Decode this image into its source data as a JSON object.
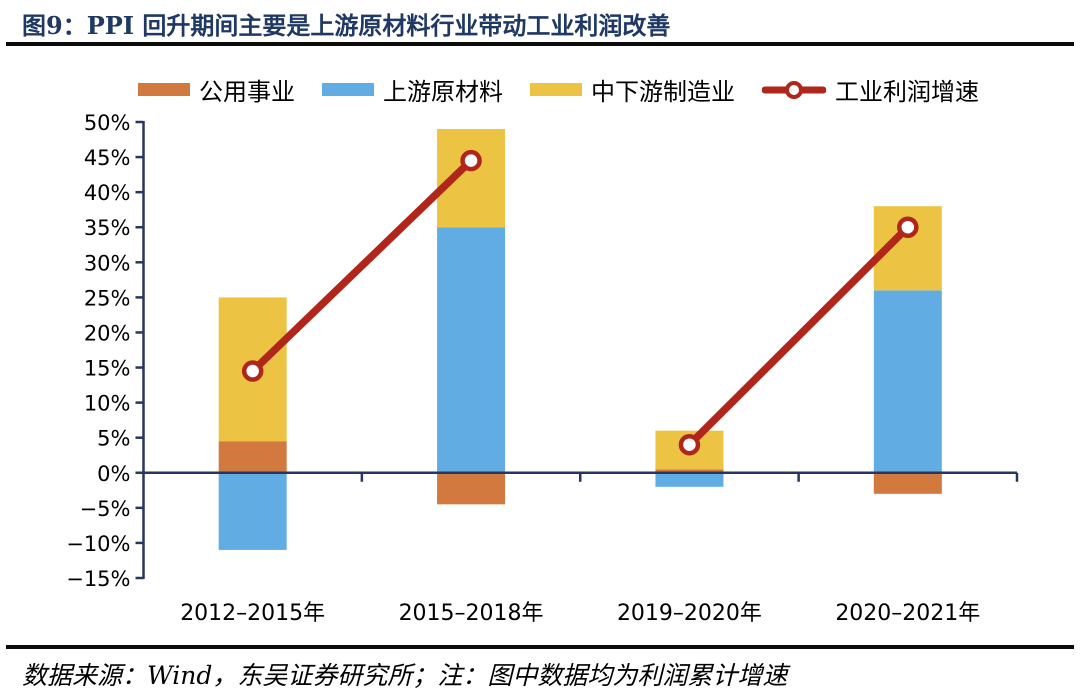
{
  "title": "图9：PPI 回升期间主要是上游原材料行业带动工业利润改善",
  "footer": {
    "note": "数据来源：Wind，东吴证券研究所；注：图中数据均为利润累计增速"
  },
  "colors": {
    "title_navy": "#1F3864",
    "axis_navy": "#26365E",
    "utilities_orange": "#D2793F",
    "upstream_blue": "#61ADE3",
    "midstream_yellow": "#EDC344",
    "line_red": "#B0261A",
    "rule_black": "#0b0b0b"
  },
  "chart_data": {
    "type": "bar",
    "subtype": "stacked-bars-with-line-overlay",
    "title": "PPI 回升期间主要是上游原材料行业带动工业利润改善",
    "xlabel": "",
    "ylabel": "",
    "grid": false,
    "legend_position": "top",
    "categories": [
      "2012–2015年",
      "2015–2018年",
      "2019–2020年",
      "2020–2021年"
    ],
    "series": [
      {
        "name": "公用事业",
        "color": "#D2793F",
        "values": [
          4.5,
          -4.5,
          0.5,
          -3
        ]
      },
      {
        "name": "上游原材料",
        "color": "#61ADE3",
        "values": [
          -11,
          35,
          -2,
          26
        ]
      },
      {
        "name": "中下游制造业",
        "color": "#EDC344",
        "values": [
          20.5,
          14,
          5.5,
          12
        ]
      }
    ],
    "line_series": {
      "name": "工业利润增速",
      "color": "#B0261A",
      "marker": "open-circle",
      "values": [
        14.5,
        44.5,
        4,
        35
      ],
      "break_after": [
        1
      ]
    },
    "ylim": [
      -15,
      50
    ],
    "y_ticks": [
      {
        "v": 50,
        "label": "50%"
      },
      {
        "v": 45,
        "label": "45%"
      },
      {
        "v": 40,
        "label": "40%"
      },
      {
        "v": 35,
        "label": "35%"
      },
      {
        "v": 30,
        "label": "30%"
      },
      {
        "v": 25,
        "label": "25%"
      },
      {
        "v": 20,
        "label": "20%"
      },
      {
        "v": 15,
        "label": "15%"
      },
      {
        "v": 10,
        "label": "10%"
      },
      {
        "v": 5,
        "label": "5%"
      },
      {
        "v": 0,
        "label": "0%"
      },
      {
        "v": -5,
        "label": "−5%"
      },
      {
        "v": -10,
        "label": "−10%"
      },
      {
        "v": -15,
        "label": "−15%"
      }
    ]
  }
}
